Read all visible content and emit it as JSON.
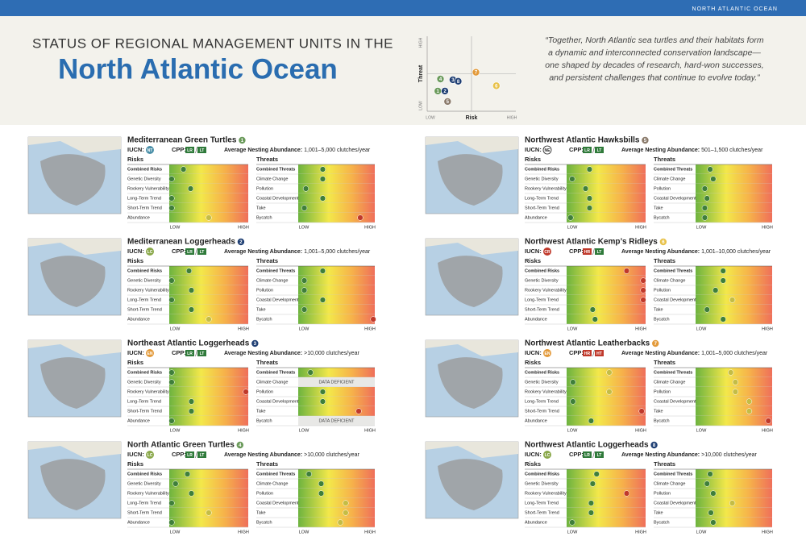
{
  "header": {
    "banner": "NORTH ATLANTIC OCEAN",
    "title_line1": "STATUS OF REGIONAL MANAGEMENT UNITS IN THE",
    "title_line2": "North Atlantic Ocean",
    "quote": [
      "“Together, North Atlantic sea turtles and their habitats form",
      "a dynamic and interconnected conservation landscape—",
      "one shaped by decades of research, hard-won successes,",
      "and persistent challenges that continue to evolve today.”"
    ]
  },
  "plot": {
    "y_label": "Threat",
    "x_label": "Risk",
    "low": "LOW",
    "high": "HIGH",
    "points": [
      {
        "label": "1",
        "risk": 0.12,
        "threat": 0.27,
        "color": "#6a9a5a"
      },
      {
        "label": "2",
        "risk": 0.2,
        "threat": 0.27,
        "color": "#1f3f73"
      },
      {
        "label": "3",
        "risk": 0.29,
        "threat": 0.42,
        "color": "#1f3f73"
      },
      {
        "label": "4",
        "risk": 0.15,
        "threat": 0.43,
        "color": "#6a9a5a"
      },
      {
        "label": "5",
        "risk": 0.23,
        "threat": 0.13,
        "color": "#8a7a6a"
      },
      {
        "label": "6",
        "risk": 0.78,
        "threat": 0.34,
        "color": "#e8c24a"
      },
      {
        "label": "7",
        "risk": 0.55,
        "threat": 0.52,
        "color": "#e39a3a"
      },
      {
        "label": "8",
        "risk": 0.35,
        "threat": 0.4,
        "color": "#1f3f73"
      }
    ]
  },
  "labels": {
    "iucn": "IUCN:",
    "cpp": "CPP:",
    "risks": "Risks",
    "threats": "Threats",
    "abundance": "Average Nesting Abundance:",
    "data_deficient": "DATA DEFICIENT",
    "low": "LOW",
    "high": "HIGH"
  },
  "risk_labels": [
    "Combined Risks",
    "Genetic Diversity",
    "Rookery Vulnerability",
    "Long-Term Trend",
    "Short-Term Trend",
    "Abundance"
  ],
  "threat_labels": [
    "Combined Threats",
    "Climate Change",
    "Pollution",
    "Coastal Development",
    "Take",
    "Bycatch"
  ],
  "units": [
    {
      "name": "Mediterranean Green Turtles",
      "number": "1",
      "number_color": "#6a9a5a",
      "iucn": "NT",
      "iucn_color": "#4a8fa8",
      "cpp": [
        "LR",
        "LT"
      ],
      "cpp_colors": [
        "#2f7a3a",
        "#2f7a3a"
      ],
      "abundance": "1,001–5,000 clutches/year",
      "risks": [
        0.18,
        0.03,
        0.27,
        0.03,
        0.03,
        0.5
      ],
      "threats": [
        0.32,
        0.32,
        0.1,
        0.32,
        0.08,
        0.81
      ]
    },
    {
      "name": "Mediterranean Loggerheads",
      "number": "2",
      "number_color": "#1f3f73",
      "iucn": "LC",
      "iucn_color": "#8aa84a",
      "cpp": [
        "LR",
        "LT"
      ],
      "cpp_colors": [
        "#2f7a3a",
        "#2f7a3a"
      ],
      "abundance": "1,001–5,000 clutches/year",
      "risks": [
        0.25,
        0.03,
        0.28,
        0.03,
        0.28,
        0.5
      ],
      "threats": [
        0.32,
        0.08,
        0.08,
        0.32,
        0.08,
        0.98
      ]
    },
    {
      "name": "Northeast Atlantic Loggerheads",
      "number": "3",
      "number_color": "#1f3f73",
      "iucn": "EN",
      "iucn_color": "#e39a3a",
      "cpp": [
        "LR",
        "LT"
      ],
      "cpp_colors": [
        "#2f7a3a",
        "#2f7a3a"
      ],
      "abundance": ">10,000 clutches/year",
      "risks": [
        0.03,
        0.03,
        0.97,
        0.28,
        0.28,
        0.03
      ],
      "threats": [
        0.16,
        null,
        0.32,
        0.32,
        0.79,
        null
      ]
    },
    {
      "name": "North Atlantic Green Turtles",
      "number": "4",
      "number_color": "#6a9a5a",
      "iucn": "LC",
      "iucn_color": "#8aa84a",
      "cpp": [
        "LR",
        "LT"
      ],
      "cpp_colors": [
        "#2f7a3a",
        "#2f7a3a"
      ],
      "abundance": ">10,000 clutches/year",
      "risks": [
        0.23,
        0.08,
        0.28,
        0.03,
        0.5,
        0.03
      ],
      "threats": [
        0.14,
        0.3,
        0.3,
        0.62,
        0.62,
        0.55
      ]
    },
    {
      "name": "Northwest Atlantic Hawksbills",
      "number": "5",
      "number_color": "#8a7a6a",
      "iucn": "NE",
      "iucn_color": "#ffffff",
      "cpp": [
        "LR",
        "LT"
      ],
      "cpp_colors": [
        "#2f7a3a",
        "#2f7a3a"
      ],
      "abundance": "501–1,500 clutches/year",
      "risks": [
        0.29,
        0.07,
        0.24,
        0.29,
        0.29,
        0.05
      ],
      "threats": [
        0.19,
        0.23,
        0.12,
        0.15,
        0.12,
        0.12
      ]
    },
    {
      "name": "Northwest Atlantic Kemp’s Ridleys",
      "number": "6",
      "number_color": "#e8c24a",
      "iucn": "CR",
      "iucn_color": "#c0392b",
      "cpp": [
        "HR",
        "LT"
      ],
      "cpp_colors": [
        "#c0392b",
        "#2f7a3a"
      ],
      "abundance": "1,001–10,000 clutches/year",
      "risks": [
        0.76,
        0.97,
        0.97,
        0.97,
        0.33,
        0.36
      ],
      "threats": [
        0.36,
        0.36,
        0.26,
        0.48,
        0.15,
        0.36
      ]
    },
    {
      "name": "Northwest Atlantic Leatherbacks",
      "number": "7",
      "number_color": "#e39a3a",
      "iucn": "EN",
      "iucn_color": "#e39a3a",
      "cpp": [
        "HR",
        "HT"
      ],
      "cpp_colors": [
        "#c0392b",
        "#c0392b"
      ],
      "abundance": "1,001–5,000 clutches/year",
      "risks": [
        0.54,
        0.08,
        0.54,
        0.08,
        0.95,
        0.31
      ],
      "threats": [
        0.46,
        0.52,
        0.52,
        0.7,
        0.7,
        0.95
      ]
    },
    {
      "name": "Northwest Atlantic Loggerheads",
      "number": "8",
      "number_color": "#1f3f73",
      "iucn": "LC",
      "iucn_color": "#8aa84a",
      "cpp": [
        "LR",
        "LT"
      ],
      "cpp_colors": [
        "#2f7a3a",
        "#2f7a3a"
      ],
      "abundance": ">10,000 clutches/year",
      "risks": [
        0.38,
        0.33,
        0.76,
        0.31,
        0.31,
        0.07
      ],
      "threats": [
        0.19,
        0.15,
        0.23,
        0.48,
        0.2,
        0.23
      ]
    }
  ]
}
